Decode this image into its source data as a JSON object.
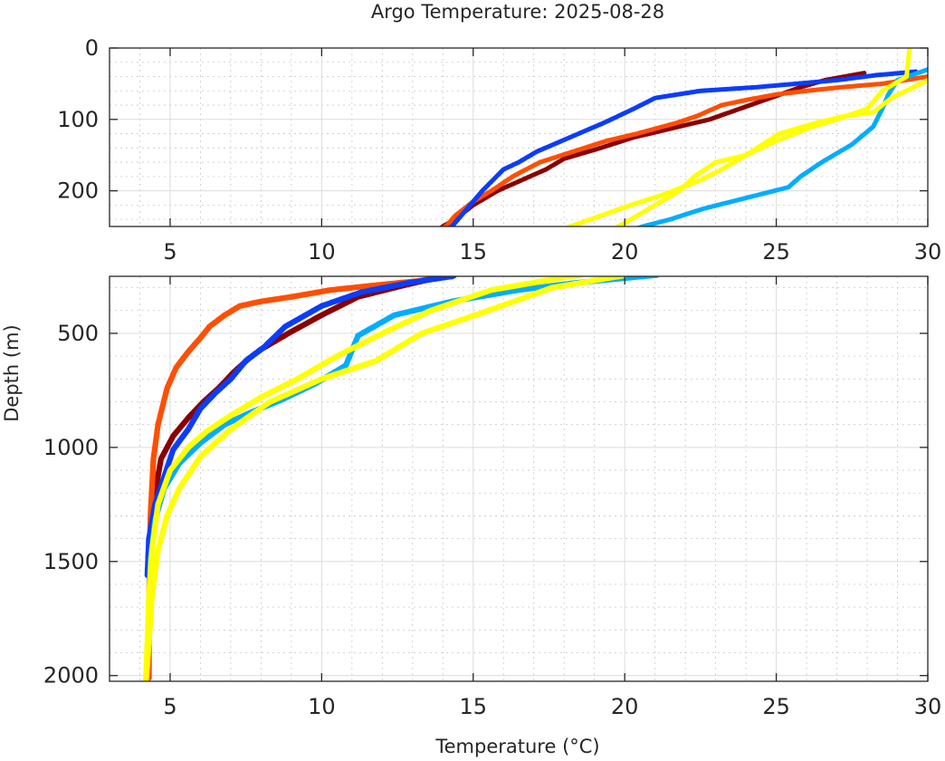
{
  "chart_data": {
    "type": "scatter",
    "title": "Argo Temperature: 2025-08-28",
    "xlabel": "Temperature (°C)",
    "ylabel": "Depth (m)",
    "grid": true,
    "legend": "none",
    "colors": {
      "dark_red": "#8b0000",
      "orange": "#ff4f00",
      "blue": "#0a3dfb",
      "light_blue": "#00adff",
      "yellow": "#ffff00"
    },
    "panels": [
      {
        "name": "upper",
        "xlim": [
          3,
          30
        ],
        "ylim": [
          0,
          250
        ],
        "y_reversed": true,
        "xticks": [
          "5",
          "10",
          "15",
          "20",
          "25",
          "30"
        ],
        "xtick_values": [
          5,
          10,
          15,
          20,
          25,
          30
        ],
        "yticks": [
          "0",
          "100",
          "200"
        ],
        "ytick_values": [
          0,
          100,
          200
        ]
      },
      {
        "name": "lower",
        "xlim": [
          3,
          30
        ],
        "ylim": [
          250,
          2025
        ],
        "y_reversed": true,
        "xticks": [
          "5",
          "10",
          "15",
          "20",
          "25",
          "30"
        ],
        "xtick_values": [
          5,
          10,
          15,
          20,
          25,
          30
        ],
        "yticks": [
          "500",
          "1000",
          "1500",
          "2000"
        ],
        "ytick_values": [
          500,
          1000,
          1500,
          2000
        ]
      }
    ],
    "series": [
      {
        "name": "profile-dark-red",
        "color": "#8b0000",
        "temperature": [
          27.9,
          26.6,
          25.8,
          24.8,
          23.8,
          22.8,
          21.3,
          20.3,
          19.2,
          18.0,
          17.4,
          16.6,
          15.8,
          15.0,
          14.4,
          14.0,
          14.0,
          12.7,
          11.2,
          10.0,
          8.9,
          8.0,
          7.6,
          7.1,
          6.6,
          6.1,
          5.6,
          5.1,
          4.7,
          4.5,
          4.4,
          4.35,
          4.3,
          4.3
        ],
        "depth": [
          35,
          45,
          55,
          70,
          85,
          100,
          115,
          125,
          140,
          155,
          170,
          185,
          200,
          220,
          240,
          250,
          250,
          290,
          340,
          420,
          500,
          570,
          610,
          670,
          740,
          800,
          870,
          950,
          1050,
          1200,
          1400,
          1600,
          1800,
          2010
        ]
      },
      {
        "name": "profile-orange",
        "color": "#ff4f00",
        "temperature": [
          30.0,
          28.5,
          27.1,
          26.0,
          25.0,
          24.1,
          23.2,
          22.4,
          21.7,
          20.4,
          19.4,
          18.3,
          17.2,
          16.3,
          15.6,
          15.0,
          14.4,
          14.1,
          13.2,
          11.7,
          10.3,
          9.0,
          8.0,
          7.3,
          6.8,
          6.3,
          6.0,
          5.6,
          5.2,
          4.9,
          4.6,
          4.45,
          4.35,
          4.3,
          4.3
        ],
        "depth": [
          40,
          50,
          55,
          60,
          65,
          72,
          80,
          95,
          105,
          120,
          130,
          145,
          160,
          180,
          200,
          215,
          235,
          250,
          270,
          290,
          310,
          340,
          360,
          380,
          420,
          470,
          520,
          580,
          650,
          740,
          900,
          1050,
          1300,
          1700,
          2010
        ]
      },
      {
        "name": "profile-blue",
        "color": "#0a3dfb",
        "temperature": [
          29.6,
          28.3,
          27.0,
          24.3,
          22.5,
          21.0,
          20.3,
          19.3,
          18.2,
          17.1,
          16.5,
          16.0,
          15.3,
          14.7,
          14.3,
          14.3,
          12.8,
          11.3,
          10.0,
          8.8,
          8.1,
          7.5,
          7.0,
          6.5,
          6.0,
          5.6,
          5.1,
          4.8,
          4.5,
          4.3,
          4.25
        ],
        "depth": [
          33,
          38,
          45,
          55,
          60,
          70,
          85,
          105,
          125,
          145,
          160,
          170,
          200,
          230,
          250,
          250,
          280,
          320,
          380,
          470,
          560,
          620,
          700,
          760,
          830,
          920,
          1010,
          1130,
          1250,
          1400,
          1560
        ]
      },
      {
        "name": "profile-light-blue",
        "color": "#00adff",
        "temperature": [
          30.0,
          29.0,
          28.7,
          28.5,
          28.2,
          27.5,
          26.5,
          25.8,
          25.4,
          24.0,
          22.6,
          21.5,
          20.6,
          20.6,
          18.3,
          16.5,
          14.3,
          12.4,
          11.2,
          10.8,
          9.8,
          8.7,
          7.6,
          6.8,
          6.0,
          5.3,
          4.8,
          4.5,
          4.35,
          4.3
        ],
        "depth": [
          30,
          45,
          65,
          85,
          110,
          135,
          160,
          180,
          195,
          210,
          225,
          240,
          250,
          250,
          280,
          310,
          360,
          420,
          510,
          640,
          720,
          790,
          850,
          900,
          980,
          1070,
          1180,
          1320,
          1500,
          1700
        ]
      },
      {
        "name": "profile-yellow-a",
        "color": "#ffff00",
        "temperature": [
          29.4,
          29.3,
          28.5,
          28.0,
          27.0,
          26.2,
          25.0,
          24.0,
          23.2,
          22.5,
          21.3,
          20.2,
          19.2,
          18.2,
          18.2,
          15.6,
          13.6,
          12.0,
          10.5,
          9.2,
          8.0,
          7.0,
          6.2,
          5.6,
          5.0,
          4.6,
          4.4,
          4.3,
          4.25,
          4.2
        ],
        "depth": [
          0,
          40,
          60,
          85,
          100,
          110,
          130,
          150,
          170,
          185,
          205,
          220,
          235,
          250,
          250,
          310,
          400,
          500,
          600,
          700,
          780,
          860,
          930,
          1000,
          1100,
          1250,
          1450,
          1650,
          1850,
          2020
        ]
      },
      {
        "name": "profile-yellow-b",
        "color": "#ffff00",
        "temperature": [
          30.0,
          28.8,
          28.2,
          27.3,
          26.3,
          25.1,
          24.0,
          23.0,
          22.3,
          21.8,
          21.2,
          20.8,
          20.2,
          19.8,
          19.8,
          17.6,
          15.5,
          13.3,
          11.8,
          10.0,
          8.3,
          7.0,
          6.0,
          5.3,
          4.9,
          4.6,
          4.4,
          4.3,
          4.2
        ],
        "depth": [
          45,
          70,
          90,
          95,
          105,
          120,
          150,
          160,
          180,
          200,
          215,
          225,
          240,
          250,
          250,
          300,
          400,
          500,
          620,
          700,
          800,
          920,
          1040,
          1180,
          1300,
          1450,
          1650,
          1850,
          2030
        ]
      }
    ]
  }
}
